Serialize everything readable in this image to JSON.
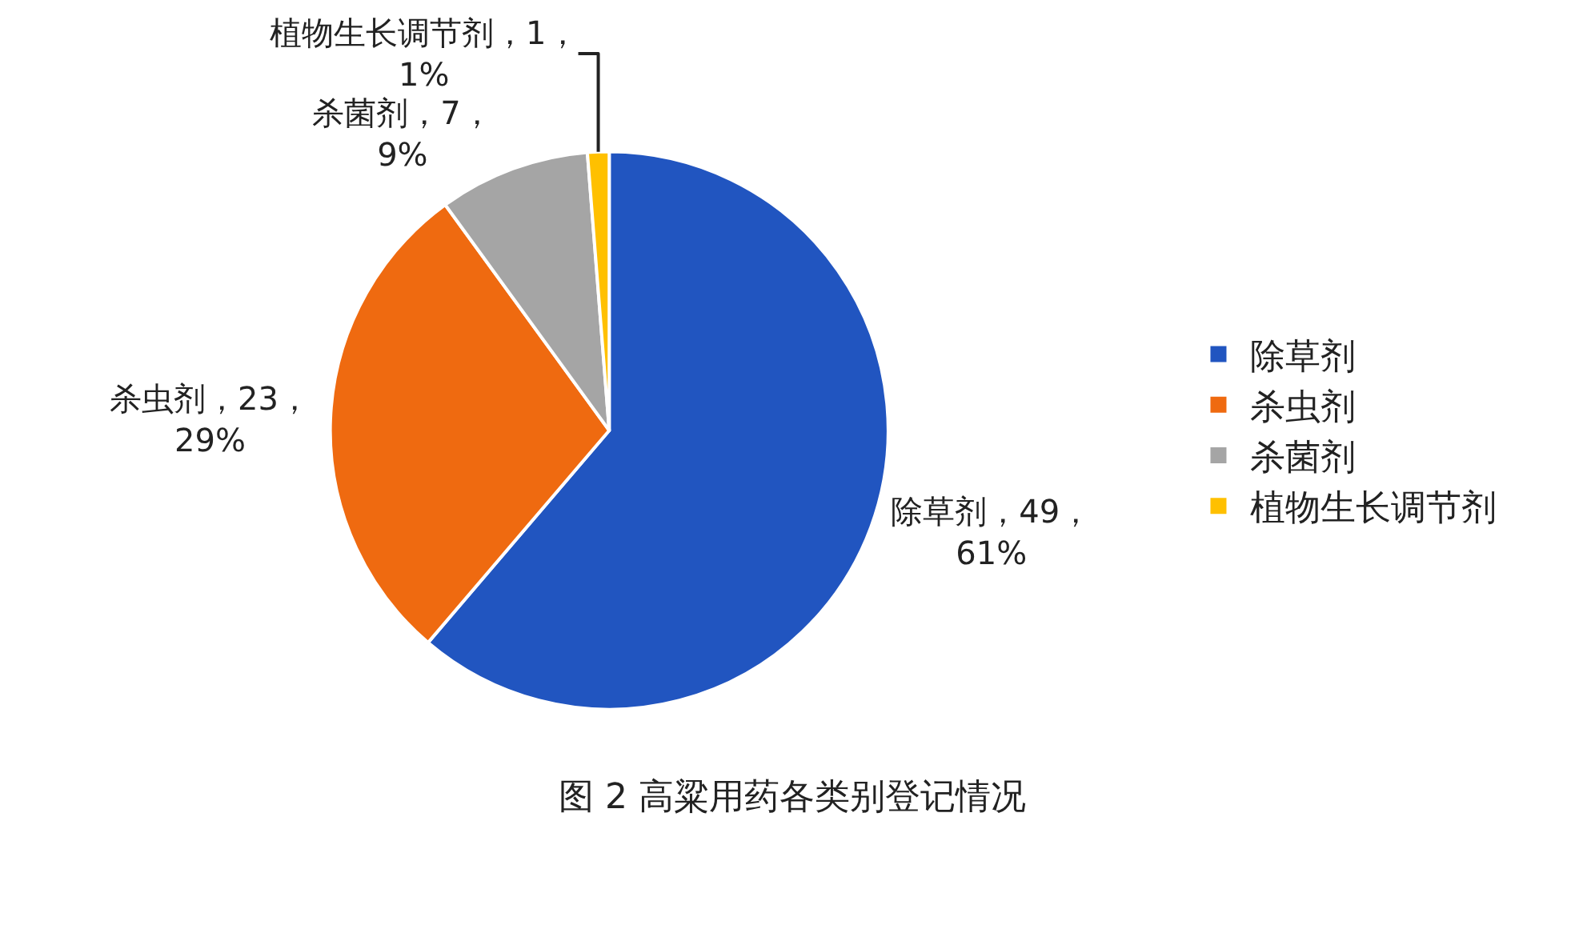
{
  "chart_data": {
    "type": "pie",
    "title": "图 2 高粱用药各类别登记情况",
    "categories": [
      "除草剂",
      "杀虫剂",
      "杀菌剂",
      "植物生长调节剂"
    ],
    "values": [
      49,
      23,
      7,
      1
    ],
    "colors": [
      "#2155c0",
      "#ef6a10",
      "#a5a5a5",
      "#ffc000"
    ],
    "value_labels": [
      "除草剂，49，61%",
      "杀虫剂，23，29%",
      "杀菌剂，7，9%",
      "植物生长调节剂，1，1%"
    ],
    "legend": "right"
  }
}
